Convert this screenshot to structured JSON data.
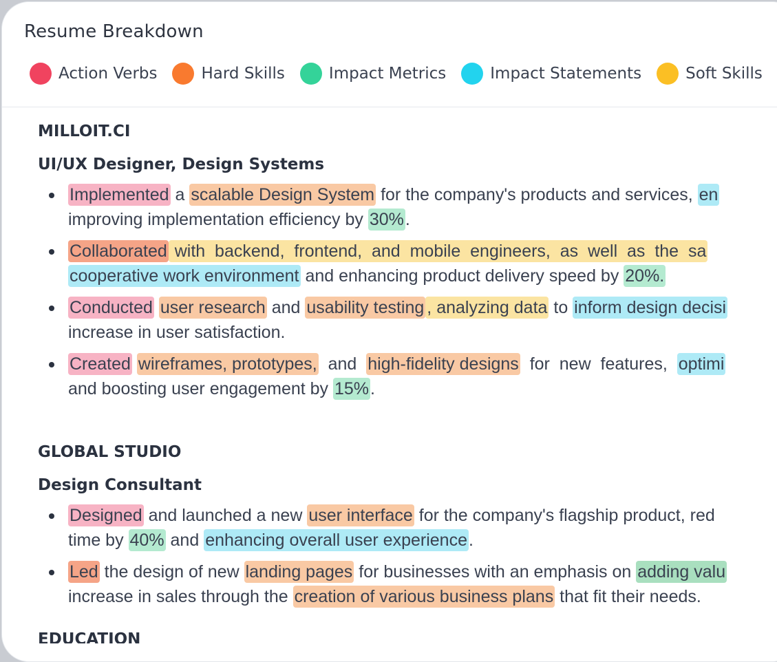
{
  "title": "Resume Breakdown",
  "legend": [
    {
      "label": "Action Verbs",
      "color": "#f0435f"
    },
    {
      "label": "Hard Skills",
      "color": "#f97a2f"
    },
    {
      "label": "Impact Metrics",
      "color": "#34d399"
    },
    {
      "label": "Impact Statements",
      "color": "#22d3ee"
    },
    {
      "label": "Soft Skills",
      "color": "#fbbf24"
    }
  ],
  "sections": [
    {
      "company": "MILLOIT.CI",
      "role": "UI/UX Designer, Design Systems",
      "bullets": [
        {
          "lines": [
            [
              {
                "text": "Implemented",
                "hl": "verb"
              },
              {
                "text": " a "
              },
              {
                "text": "scalable Design System",
                "hl": "hard"
              },
              {
                "text": " for the company's products and services, "
              },
              {
                "text": "en",
                "hl": "impact"
              }
            ],
            [
              {
                "text": "improving implementation efficiency by "
              },
              {
                "text": "30%",
                "hl": "metric"
              },
              {
                "text": "."
              }
            ]
          ]
        },
        {
          "lines": [
            [
              {
                "text": "Collaborated",
                "hl": "verb2"
              },
              {
                "text": " with  backend,  frontend,  and  mobile  engineers,  as  well  as  the  sa",
                "hl": "soft"
              }
            ],
            [
              {
                "text": "cooperative work environment",
                "hl": "impact"
              },
              {
                "text": " and enhancing product delivery speed by "
              },
              {
                "text": "20%.",
                "hl": "metric"
              }
            ]
          ]
        },
        {
          "lines": [
            [
              {
                "text": "Conducted",
                "hl": "verb"
              },
              {
                "text": " "
              },
              {
                "text": "user research",
                "hl": "hard"
              },
              {
                "text": " and "
              },
              {
                "text": "usability testing",
                "hl": "hard"
              },
              {
                "text": ", analyzing data",
                "hl": "soft"
              },
              {
                "text": " to "
              },
              {
                "text": "inform design decisi",
                "hl": "impact"
              }
            ],
            [
              {
                "text": "increase in user satisfaction."
              }
            ]
          ]
        },
        {
          "lines": [
            [
              {
                "text": "Created",
                "hl": "verb"
              },
              {
                "text": " "
              },
              {
                "text": "wireframes, prototypes,",
                "hl": "hard"
              },
              {
                "text": "  and  "
              },
              {
                "text": "high-fidelity designs",
                "hl": "hard"
              },
              {
                "text": "  for  new  features,  "
              },
              {
                "text": "optimi",
                "hl": "impact"
              }
            ],
            [
              {
                "text": "and boosting user engagement by "
              },
              {
                "text": "15%",
                "hl": "metric"
              },
              {
                "text": "."
              }
            ]
          ]
        }
      ]
    },
    {
      "company": "GLOBAL STUDIO",
      "role": "Design Consultant",
      "bullets": [
        {
          "lines": [
            [
              {
                "text": "Designed",
                "hl": "verb"
              },
              {
                "text": " and launched a new "
              },
              {
                "text": "user interface",
                "hl": "hard"
              },
              {
                "text": " for the company's flagship product, red"
              }
            ],
            [
              {
                "text": "time by "
              },
              {
                "text": "40%",
                "hl": "metric"
              },
              {
                "text": " and "
              },
              {
                "text": "enhancing overall user experience",
                "hl": "impact"
              },
              {
                "text": "."
              }
            ]
          ]
        },
        {
          "lines": [
            [
              {
                "text": "Led",
                "hl": "verb2"
              },
              {
                "text": " the design of new "
              },
              {
                "text": "landing pages",
                "hl": "hard"
              },
              {
                "text": " for businesses with an emphasis on "
              },
              {
                "text": "adding valu",
                "hl": "metric2"
              }
            ],
            [
              {
                "text": "increase in sales through the "
              },
              {
                "text": "creation of various business plans",
                "hl": "hard"
              },
              {
                "text": " that fit their needs."
              }
            ]
          ]
        }
      ]
    }
  ],
  "next_section": "EDUCATION"
}
